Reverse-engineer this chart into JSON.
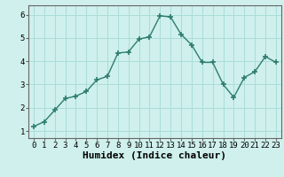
{
  "x": [
    0,
    1,
    2,
    3,
    4,
    5,
    6,
    7,
    8,
    9,
    10,
    11,
    12,
    13,
    14,
    15,
    16,
    17,
    18,
    19,
    20,
    21,
    22,
    23
  ],
  "y": [
    1.2,
    1.4,
    1.9,
    2.4,
    2.5,
    2.7,
    3.2,
    3.35,
    4.35,
    4.4,
    4.95,
    5.05,
    5.95,
    5.9,
    5.15,
    4.7,
    3.95,
    3.95,
    3.0,
    2.45,
    3.3,
    3.55,
    4.2,
    3.95
  ],
  "line_color": "#2e7d6e",
  "marker": "+",
  "marker_size": 4,
  "marker_linewidth": 1.2,
  "linewidth": 1.0,
  "bg_color": "#cff0ec",
  "grid_color": "#aaddd8",
  "xlabel": "Humidex (Indice chaleur)",
  "xlabel_fontsize": 8,
  "ylim": [
    0.7,
    6.4
  ],
  "xlim": [
    -0.5,
    23.5
  ],
  "yticks": [
    1,
    2,
    3,
    4,
    5,
    6
  ],
  "xticks": [
    0,
    1,
    2,
    3,
    4,
    5,
    6,
    7,
    8,
    9,
    10,
    11,
    12,
    13,
    14,
    15,
    16,
    17,
    18,
    19,
    20,
    21,
    22,
    23
  ],
  "tick_fontsize": 6.5,
  "spine_color": "#666666"
}
